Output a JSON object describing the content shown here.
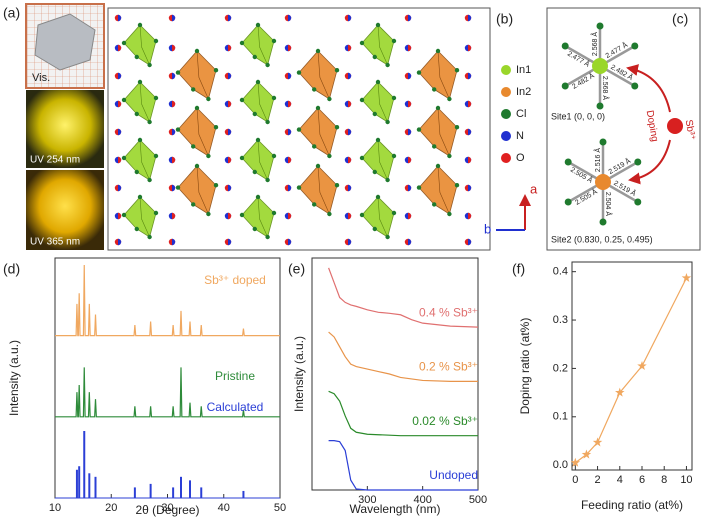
{
  "panels": [
    "(a)",
    "(b)",
    "(c)",
    "(d)",
    "(e)",
    "(f)"
  ],
  "photos": [
    "Vis.",
    "UV 254 nm",
    "UV 365 nm"
  ],
  "structure": {
    "legend": [
      {
        "name": "In1",
        "color": "#9ad62a"
      },
      {
        "name": "In2",
        "color": "#e8892e"
      },
      {
        "name": "Cl",
        "color": "#1f7a2e"
      },
      {
        "name": "N",
        "color": "#2030d0"
      },
      {
        "name": "O",
        "color": "#e02020"
      }
    ],
    "axes": [
      "a",
      "b"
    ]
  },
  "sites": {
    "bonds1": [
      "2.568 Å",
      "2.477 Å",
      "2.482 Å",
      "2.568 Å",
      "2.482 Å",
      "2.477 Å"
    ],
    "bonds2": [
      "2.516 Å",
      "2.519 Å",
      "2.519 Å",
      "2.504 Å",
      "2.505 Å",
      "2.505 Å"
    ],
    "site1": "Site1 (0, 0, 0)",
    "site2": "Site2 (0.830, 0.25, 0.495)",
    "arrow_label": "Doping",
    "ion": "Sb³⁺"
  },
  "chart_data": [
    {
      "type": "line",
      "xlabel": "2θ (Degree)",
      "ylabel": "Intensity (a.u.)",
      "xlim": [
        10,
        50
      ],
      "xticks": [
        10,
        20,
        30,
        40,
        50
      ],
      "ylim": [
        0,
        3.4
      ],
      "series": [
        {
          "name": "Sb³⁺ doped",
          "color": "#f0a860",
          "x": [
            10,
            13.75,
            13.9,
            14.05,
            14.15,
            14.3,
            14.45,
            15.05,
            15.2,
            15.35,
            15.95,
            16.1,
            16.25,
            17.05,
            17.2,
            17.35,
            24.05,
            24.2,
            24.35,
            26.85,
            27,
            27.15,
            30.85,
            31,
            31.15,
            32.25,
            32.4,
            32.55,
            33.85,
            34,
            34.15,
            35.85,
            36,
            36.15,
            43.35,
            43.5,
            43.65,
            50
          ],
          "values": [
            2.3,
            2.3,
            2.75,
            2.3,
            2.3,
            2.9,
            2.3,
            2.3,
            3.3,
            2.3,
            2.3,
            2.75,
            2.3,
            2.3,
            2.6,
            2.3,
            2.3,
            2.45,
            2.3,
            2.3,
            2.5,
            2.3,
            2.3,
            2.45,
            2.3,
            2.3,
            2.65,
            2.3,
            2.3,
            2.5,
            2.3,
            2.3,
            2.45,
            2.3,
            2.3,
            2.4,
            2.3,
            2.3
          ]
        },
        {
          "name": "Pristine",
          "color": "#2e8b3a",
          "x": [
            10,
            13.75,
            13.9,
            14.05,
            14.15,
            14.3,
            14.45,
            15.05,
            15.2,
            15.35,
            15.95,
            16.1,
            16.25,
            17.05,
            17.2,
            17.35,
            24.05,
            24.2,
            24.35,
            26.85,
            27,
            27.15,
            30.85,
            31,
            31.15,
            32.25,
            32.4,
            32.55,
            33.85,
            34,
            34.15,
            35.85,
            36,
            36.15,
            43.35,
            43.5,
            43.65,
            50
          ],
          "values": [
            1.15,
            1.15,
            1.5,
            1.15,
            1.15,
            1.6,
            1.15,
            1.15,
            1.85,
            1.15,
            1.15,
            1.5,
            1.15,
            1.15,
            1.4,
            1.15,
            1.15,
            1.3,
            1.15,
            1.15,
            1.3,
            1.15,
            1.15,
            1.3,
            1.15,
            1.15,
            1.85,
            1.15,
            1.15,
            1.35,
            1.15,
            1.15,
            1.3,
            1.15,
            1.15,
            1.25,
            1.15,
            1.15
          ]
        },
        {
          "name": "Calculated",
          "color": "#2b3fd6",
          "type": "stem",
          "x": [
            13.9,
            14.3,
            15.2,
            16.1,
            17.2,
            24.2,
            27,
            31,
            32.4,
            34,
            36,
            43.5
          ],
          "values": [
            0.4,
            0.45,
            0.95,
            0.35,
            0.3,
            0.15,
            0.2,
            0.15,
            0.3,
            0.25,
            0.15,
            0.1
          ]
        }
      ]
    },
    {
      "type": "line",
      "xlabel": "Wavelength (nm)",
      "ylabel": "Intensity (a.u.)",
      "xlim": [
        200,
        500
      ],
      "xticks": [
        300,
        400,
        500
      ],
      "ylim": [
        0,
        4.7
      ],
      "series": [
        {
          "name": "0.4 % Sb³⁺",
          "color": "#e07070",
          "x": [
            230,
            240,
            250,
            260,
            270,
            280,
            300,
            320,
            340,
            360,
            380,
            400,
            450,
            500
          ],
          "values": [
            4.5,
            4.2,
            3.9,
            3.8,
            3.75,
            3.72,
            3.65,
            3.6,
            3.58,
            3.55,
            3.45,
            3.38,
            3.32,
            3.3
          ]
        },
        {
          "name": "0.2 % Sb³⁺",
          "color": "#e8944a",
          "x": [
            230,
            240,
            250,
            260,
            270,
            280,
            300,
            320,
            340,
            360,
            380,
            400,
            450,
            500
          ],
          "values": [
            3.2,
            3.1,
            2.9,
            2.7,
            2.55,
            2.5,
            2.45,
            2.4,
            2.35,
            2.28,
            2.25,
            2.22,
            2.2,
            2.2
          ]
        },
        {
          "name": "0.02 % Sb³⁺",
          "color": "#2a8a2a",
          "x": [
            230,
            240,
            250,
            260,
            270,
            280,
            300,
            320,
            340,
            360,
            380,
            400,
            450,
            500
          ],
          "values": [
            2.0,
            1.95,
            1.8,
            1.5,
            1.25,
            1.17,
            1.13,
            1.12,
            1.11,
            1.1,
            1.1,
            1.1,
            1.1,
            1.1
          ]
        },
        {
          "name": "Undoped",
          "color": "#2b3fd6",
          "x": [
            230,
            240,
            250,
            260,
            270,
            280,
            300,
            320,
            340,
            360,
            380,
            400,
            450,
            500
          ],
          "values": [
            1.0,
            1.0,
            0.98,
            0.8,
            0.2,
            0.02,
            0,
            0,
            0,
            0,
            0,
            0,
            0,
            0
          ]
        }
      ]
    },
    {
      "type": "line",
      "marker": "star",
      "color": "#f0a860",
      "xlabel": "Feeding ratio (at%)",
      "ylabel": "Doping ratio (at%)",
      "x": [
        0,
        1,
        2,
        4,
        6,
        10
      ],
      "values": [
        0.005,
        0.022,
        0.047,
        0.15,
        0.205,
        0.387
      ],
      "xlim": [
        -0.3,
        10.5
      ],
      "xticks": [
        0,
        2,
        4,
        6,
        8,
        10
      ],
      "ylim": [
        -0.01,
        0.42
      ],
      "yticks": [
        {
          "value": 0,
          "label": "0.0"
        },
        0.1,
        0.2,
        0.3,
        0.4
      ]
    }
  ]
}
